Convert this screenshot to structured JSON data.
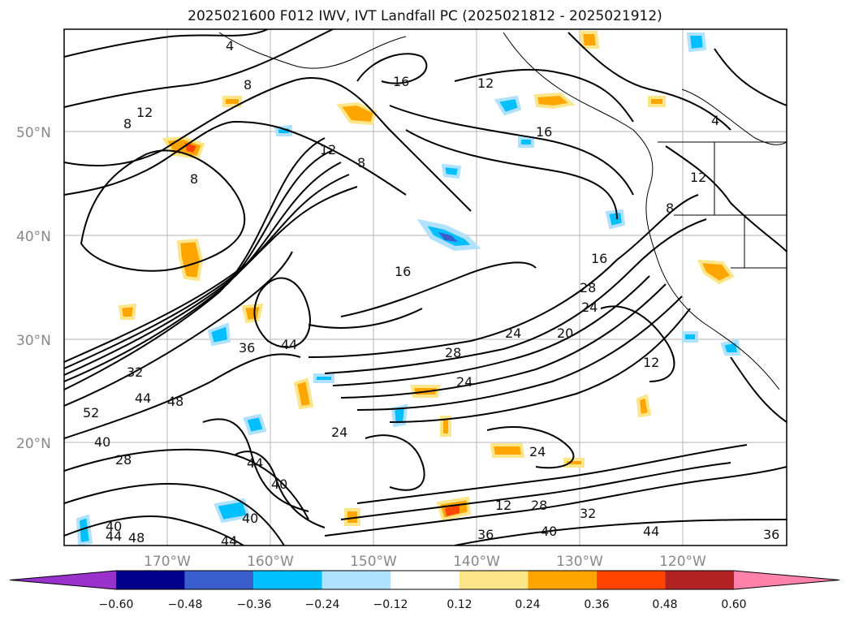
{
  "title": "2025021600 F012 IWV, IVT Landfall PC (2025021812 - 2025021912)",
  "lat_labels": [
    "50°N",
    "40°N",
    "30°N",
    "20°N"
  ],
  "lon_labels": [
    "170°W",
    "160°W",
    "150°W",
    "140°W",
    "130°W",
    "120°W"
  ],
  "contour_labels": [
    "4",
    "8",
    "12",
    "8",
    "8",
    "12",
    "16",
    "12",
    "16",
    "8",
    "12",
    "16",
    "44",
    "36",
    "32",
    "28",
    "24",
    "20",
    "16",
    "28",
    "24",
    "24",
    "44",
    "48",
    "52",
    "40",
    "28",
    "24",
    "44",
    "40",
    "40",
    "40",
    "44",
    "48",
    "44",
    "36",
    "40",
    "24",
    "28",
    "32",
    "44",
    "36",
    "12",
    "8",
    "4",
    "12"
  ],
  "colorbar": {
    "ticks": [
      "−0.60",
      "−0.48",
      "−0.36",
      "−0.24",
      "−0.12",
      "0.12",
      "0.24",
      "0.36",
      "0.48",
      "0.60"
    ],
    "colors": [
      "#9932cc",
      "#00008b",
      "#3a5fcd",
      "#00bfff",
      "#b0e2ff",
      "#ffffff",
      "#fde68a",
      "#ffa500",
      "#ff4500",
      "#b22222",
      "#ff82ab"
    ]
  }
}
